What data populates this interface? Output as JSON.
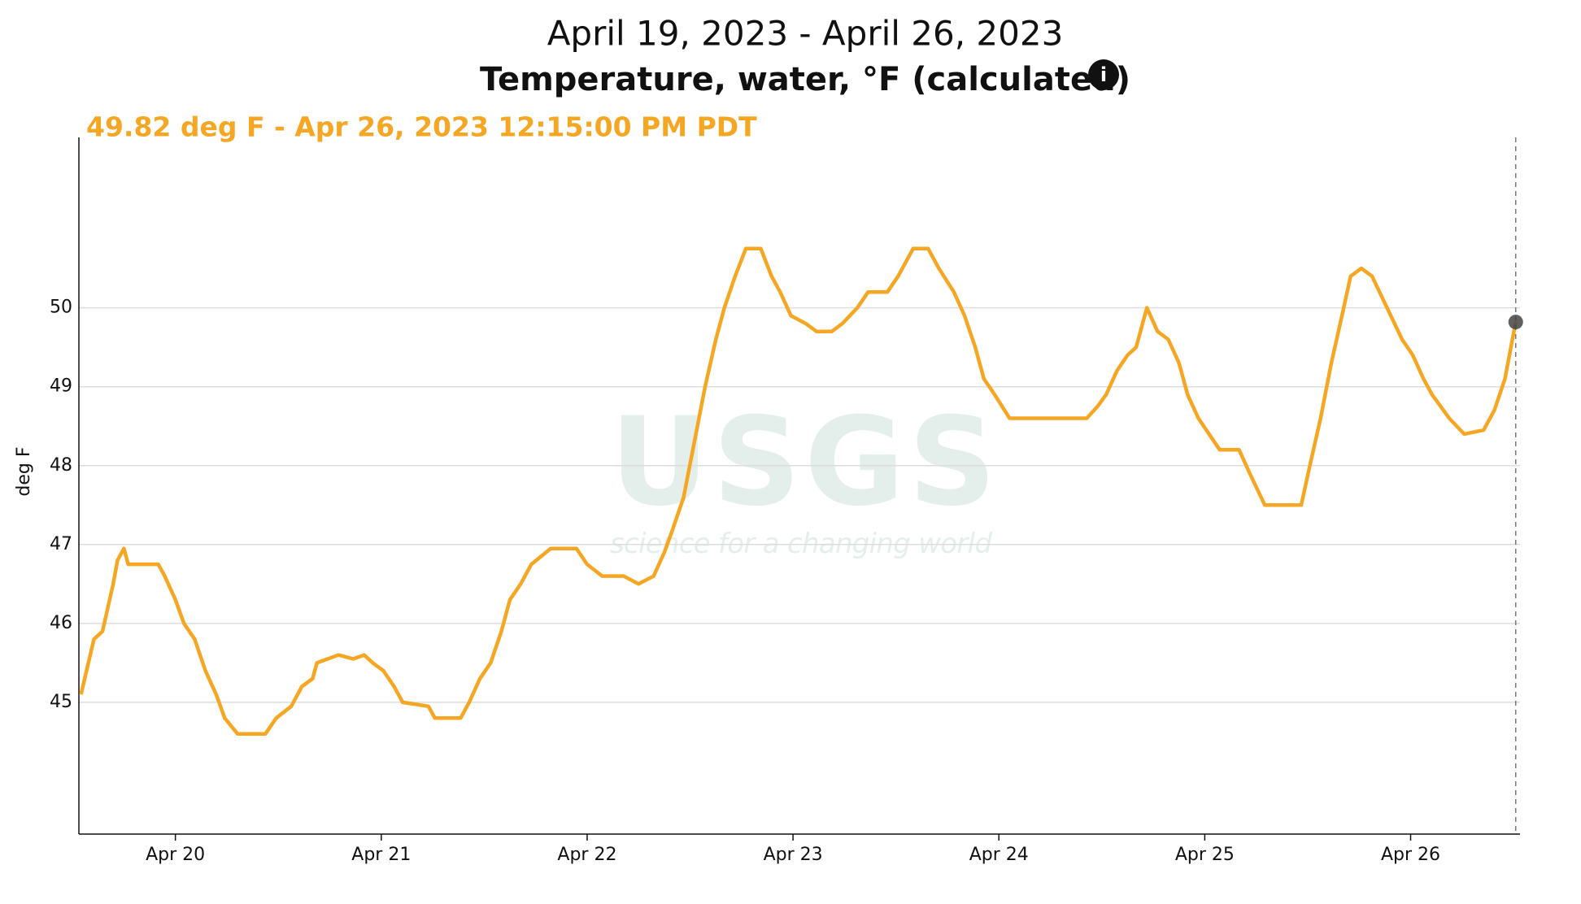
{
  "chart_data": {
    "type": "line",
    "title": "April 19, 2023 - April 26, 2023",
    "subtitle": "Temperature, water, °F (calculated)",
    "info_icon": "i",
    "annotation": "49.82 deg F - Apr 26, 2023 12:15:00 PM PDT",
    "watermark": {
      "logo": "USGS",
      "tagline": "science for a changing world"
    },
    "ylabel": "deg F",
    "ylim": [
      43.33,
      52.16
    ],
    "yticks": [
      45,
      46,
      47,
      48,
      49,
      50
    ],
    "xlim": [
      "2023-04-19T12:45",
      "2023-04-26T12:45"
    ],
    "xticks": [
      {
        "value": "2023-04-20T00:00",
        "label": "Apr 20"
      },
      {
        "value": "2023-04-21T00:00",
        "label": "Apr 21"
      },
      {
        "value": "2023-04-22T00:00",
        "label": "Apr 22"
      },
      {
        "value": "2023-04-23T00:00",
        "label": "Apr 23"
      },
      {
        "value": "2023-04-24T00:00",
        "label": "Apr 24"
      },
      {
        "value": "2023-04-25T00:00",
        "label": "Apr 25"
      },
      {
        "value": "2023-04-26T00:00",
        "label": "Apr 26"
      }
    ],
    "grid": true,
    "x": [
      "2023-04-19T13:00",
      "2023-04-19T14:30",
      "2023-04-19T15:30",
      "2023-04-19T16:45",
      "2023-04-19T17:15",
      "2023-04-19T18:00",
      "2023-04-19T18:30",
      "2023-04-19T22:00",
      "2023-04-19T22:45",
      "2023-04-20T00:00",
      "2023-04-20T01:00",
      "2023-04-20T02:15",
      "2023-04-20T03:30",
      "2023-04-20T04:45",
      "2023-04-20T05:45",
      "2023-04-20T07:15",
      "2023-04-20T10:30",
      "2023-04-20T11:45",
      "2023-04-20T13:30",
      "2023-04-20T14:45",
      "2023-04-20T16:00",
      "2023-04-20T16:30",
      "2023-04-20T19:00",
      "2023-04-20T20:45",
      "2023-04-20T22:00",
      "2023-04-20T23:00",
      "2023-04-21T00:15",
      "2023-04-21T01:30",
      "2023-04-21T02:30",
      "2023-04-21T05:30",
      "2023-04-21T06:15",
      "2023-04-21T09:15",
      "2023-04-21T10:15",
      "2023-04-21T11:30",
      "2023-04-21T12:45",
      "2023-04-21T14:00",
      "2023-04-21T15:00",
      "2023-04-21T16:15",
      "2023-04-21T17:30",
      "2023-04-21T19:45",
      "2023-04-21T22:45",
      "2023-04-22T00:00",
      "2023-04-22T01:45",
      "2023-04-22T04:15",
      "2023-04-22T06:00",
      "2023-04-22T07:45",
      "2023-04-22T09:00",
      "2023-04-22T10:00",
      "2023-04-22T11:15",
      "2023-04-22T12:30",
      "2023-04-22T13:45",
      "2023-04-22T15:00",
      "2023-04-22T16:00",
      "2023-04-22T17:15",
      "2023-04-22T18:30",
      "2023-04-22T20:15",
      "2023-04-22T21:30",
      "2023-04-22T22:30",
      "2023-04-22T23:45",
      "2023-04-23T01:30",
      "2023-04-23T02:45",
      "2023-04-23T04:30",
      "2023-04-23T05:45",
      "2023-04-23T07:30",
      "2023-04-23T08:45",
      "2023-04-23T11:00",
      "2023-04-23T12:15",
      "2023-04-23T14:00",
      "2023-04-23T15:45",
      "2023-04-23T17:00",
      "2023-04-23T18:45",
      "2023-04-23T20:00",
      "2023-04-23T21:15",
      "2023-04-23T22:15",
      "2023-04-23T23:30",
      "2023-04-24T01:15",
      "2023-04-24T10:15",
      "2023-04-24T11:30",
      "2023-04-24T12:30",
      "2023-04-24T13:45",
      "2023-04-24T15:00",
      "2023-04-24T16:00",
      "2023-04-24T17:15",
      "2023-04-24T18:30",
      "2023-04-24T19:45",
      "2023-04-24T21:00",
      "2023-04-24T22:00",
      "2023-04-24T23:15",
      "2023-04-25T00:30",
      "2023-04-25T01:45",
      "2023-04-25T04:00",
      "2023-04-25T05:15",
      "2023-04-25T07:00",
      "2023-04-25T11:15",
      "2023-04-25T12:15",
      "2023-04-25T13:30",
      "2023-04-25T14:45",
      "2023-04-25T16:00",
      "2023-04-25T17:00",
      "2023-04-25T18:15",
      "2023-04-25T19:30",
      "2023-04-25T21:15",
      "2023-04-25T23:00",
      "2023-04-26T00:15",
      "2023-04-26T01:30",
      "2023-04-26T02:30",
      "2023-04-26T04:30",
      "2023-04-26T06:15",
      "2023-04-26T08:30",
      "2023-04-26T09:45",
      "2023-04-26T11:00",
      "2023-04-26T12:15"
    ],
    "series": [
      {
        "name": "Temperature, water",
        "color": "#f5a623",
        "values": [
          45.1,
          45.8,
          45.9,
          46.5,
          46.8,
          46.95,
          46.75,
          46.75,
          46.6,
          46.3,
          46.0,
          45.8,
          45.4,
          45.1,
          44.8,
          44.6,
          44.6,
          44.8,
          44.95,
          45.2,
          45.3,
          45.5,
          45.6,
          45.55,
          45.6,
          45.5,
          45.4,
          45.2,
          45.0,
          44.95,
          44.8,
          44.8,
          45.0,
          45.3,
          45.5,
          45.9,
          46.3,
          46.5,
          46.75,
          46.95,
          46.95,
          46.75,
          46.6,
          46.6,
          46.5,
          46.6,
          46.9,
          47.2,
          47.6,
          48.3,
          49.0,
          49.6,
          50.0,
          50.4,
          50.75,
          50.75,
          50.4,
          50.2,
          49.9,
          49.8,
          49.7,
          49.7,
          49.8,
          50.0,
          50.2,
          50.2,
          50.4,
          50.75,
          50.75,
          50.5,
          50.2,
          49.9,
          49.5,
          49.1,
          48.9,
          48.6,
          48.6,
          48.75,
          48.9,
          49.2,
          49.4,
          49.5,
          50.0,
          49.7,
          49.6,
          49.3,
          48.9,
          48.6,
          48.4,
          48.2,
          48.2,
          47.9,
          47.5,
          47.5,
          48.0,
          48.6,
          49.3,
          49.9,
          50.4,
          50.5,
          50.4,
          50.0,
          49.6,
          49.4,
          49.1,
          48.9,
          48.6,
          48.4,
          48.45,
          48.7,
          49.1,
          49.82
        ]
      }
    ]
  }
}
